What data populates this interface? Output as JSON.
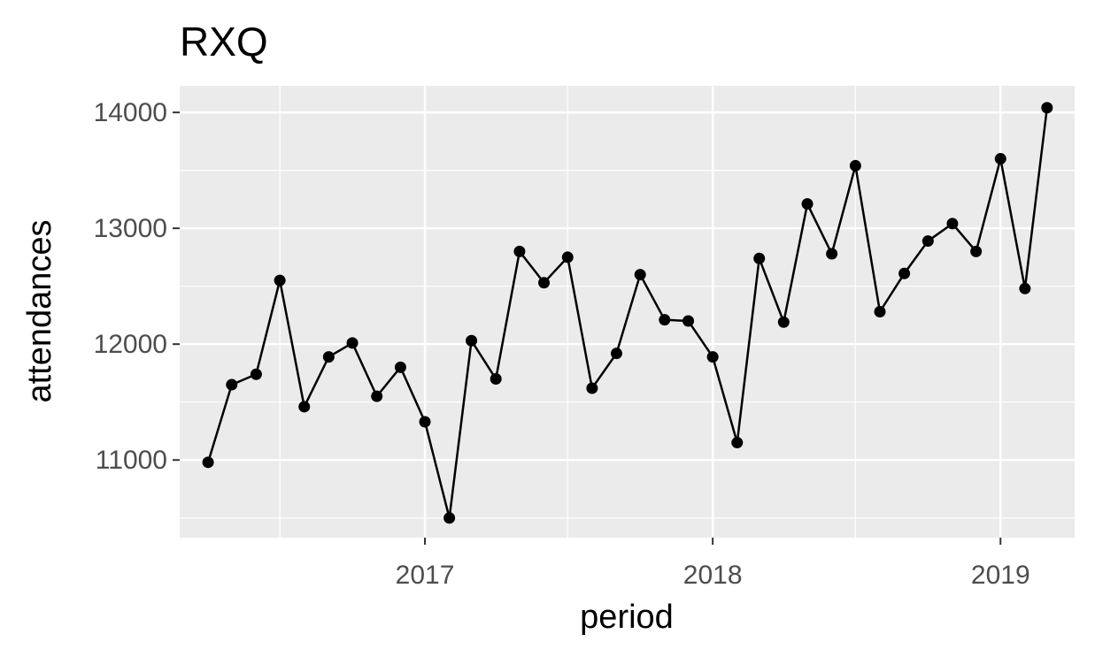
{
  "chart_data": {
    "type": "line",
    "title": "RXQ",
    "xlabel": "period",
    "ylabel": "attendances",
    "x_tick_labels": [
      "2017",
      "2018",
      "2019"
    ],
    "y_tick_labels": [
      "11000",
      "12000",
      "13000",
      "14000"
    ],
    "xlim": [
      "2016-02-25",
      "2019-04-05"
    ],
    "ylim": [
      10330,
      14230
    ],
    "grid": true,
    "series": [
      {
        "x": [
          "2016-04-01",
          "2016-05-01",
          "2016-06-01",
          "2016-07-01",
          "2016-08-01",
          "2016-09-01",
          "2016-10-01",
          "2016-11-01",
          "2016-12-01",
          "2017-01-01",
          "2017-02-01",
          "2017-03-01",
          "2017-04-01",
          "2017-05-01",
          "2017-06-01",
          "2017-07-01",
          "2017-08-01",
          "2017-09-01",
          "2017-10-01",
          "2017-11-01",
          "2017-12-01",
          "2018-01-01",
          "2018-02-01",
          "2018-03-01",
          "2018-04-01",
          "2018-05-01",
          "2018-06-01",
          "2018-07-01",
          "2018-08-01",
          "2018-09-01",
          "2018-10-01",
          "2018-11-01",
          "2018-12-01",
          "2019-01-01",
          "2019-02-01",
          "2019-03-01"
        ],
        "values": [
          10980,
          11650,
          11740,
          12550,
          11460,
          11890,
          12010,
          11550,
          11800,
          11330,
          10500,
          12030,
          11700,
          12800,
          12530,
          12750,
          11620,
          11920,
          12600,
          12210,
          12200,
          11890,
          11150,
          12740,
          12190,
          13210,
          12780,
          13540,
          12280,
          12610,
          12890,
          13040,
          12800,
          13600,
          12480,
          14040
        ]
      }
    ],
    "colors": {
      "line": "#000000",
      "point": "#000000",
      "panel": "#ebebeb",
      "grid": "#ffffff",
      "tick_text": "#4d4d4d"
    }
  }
}
